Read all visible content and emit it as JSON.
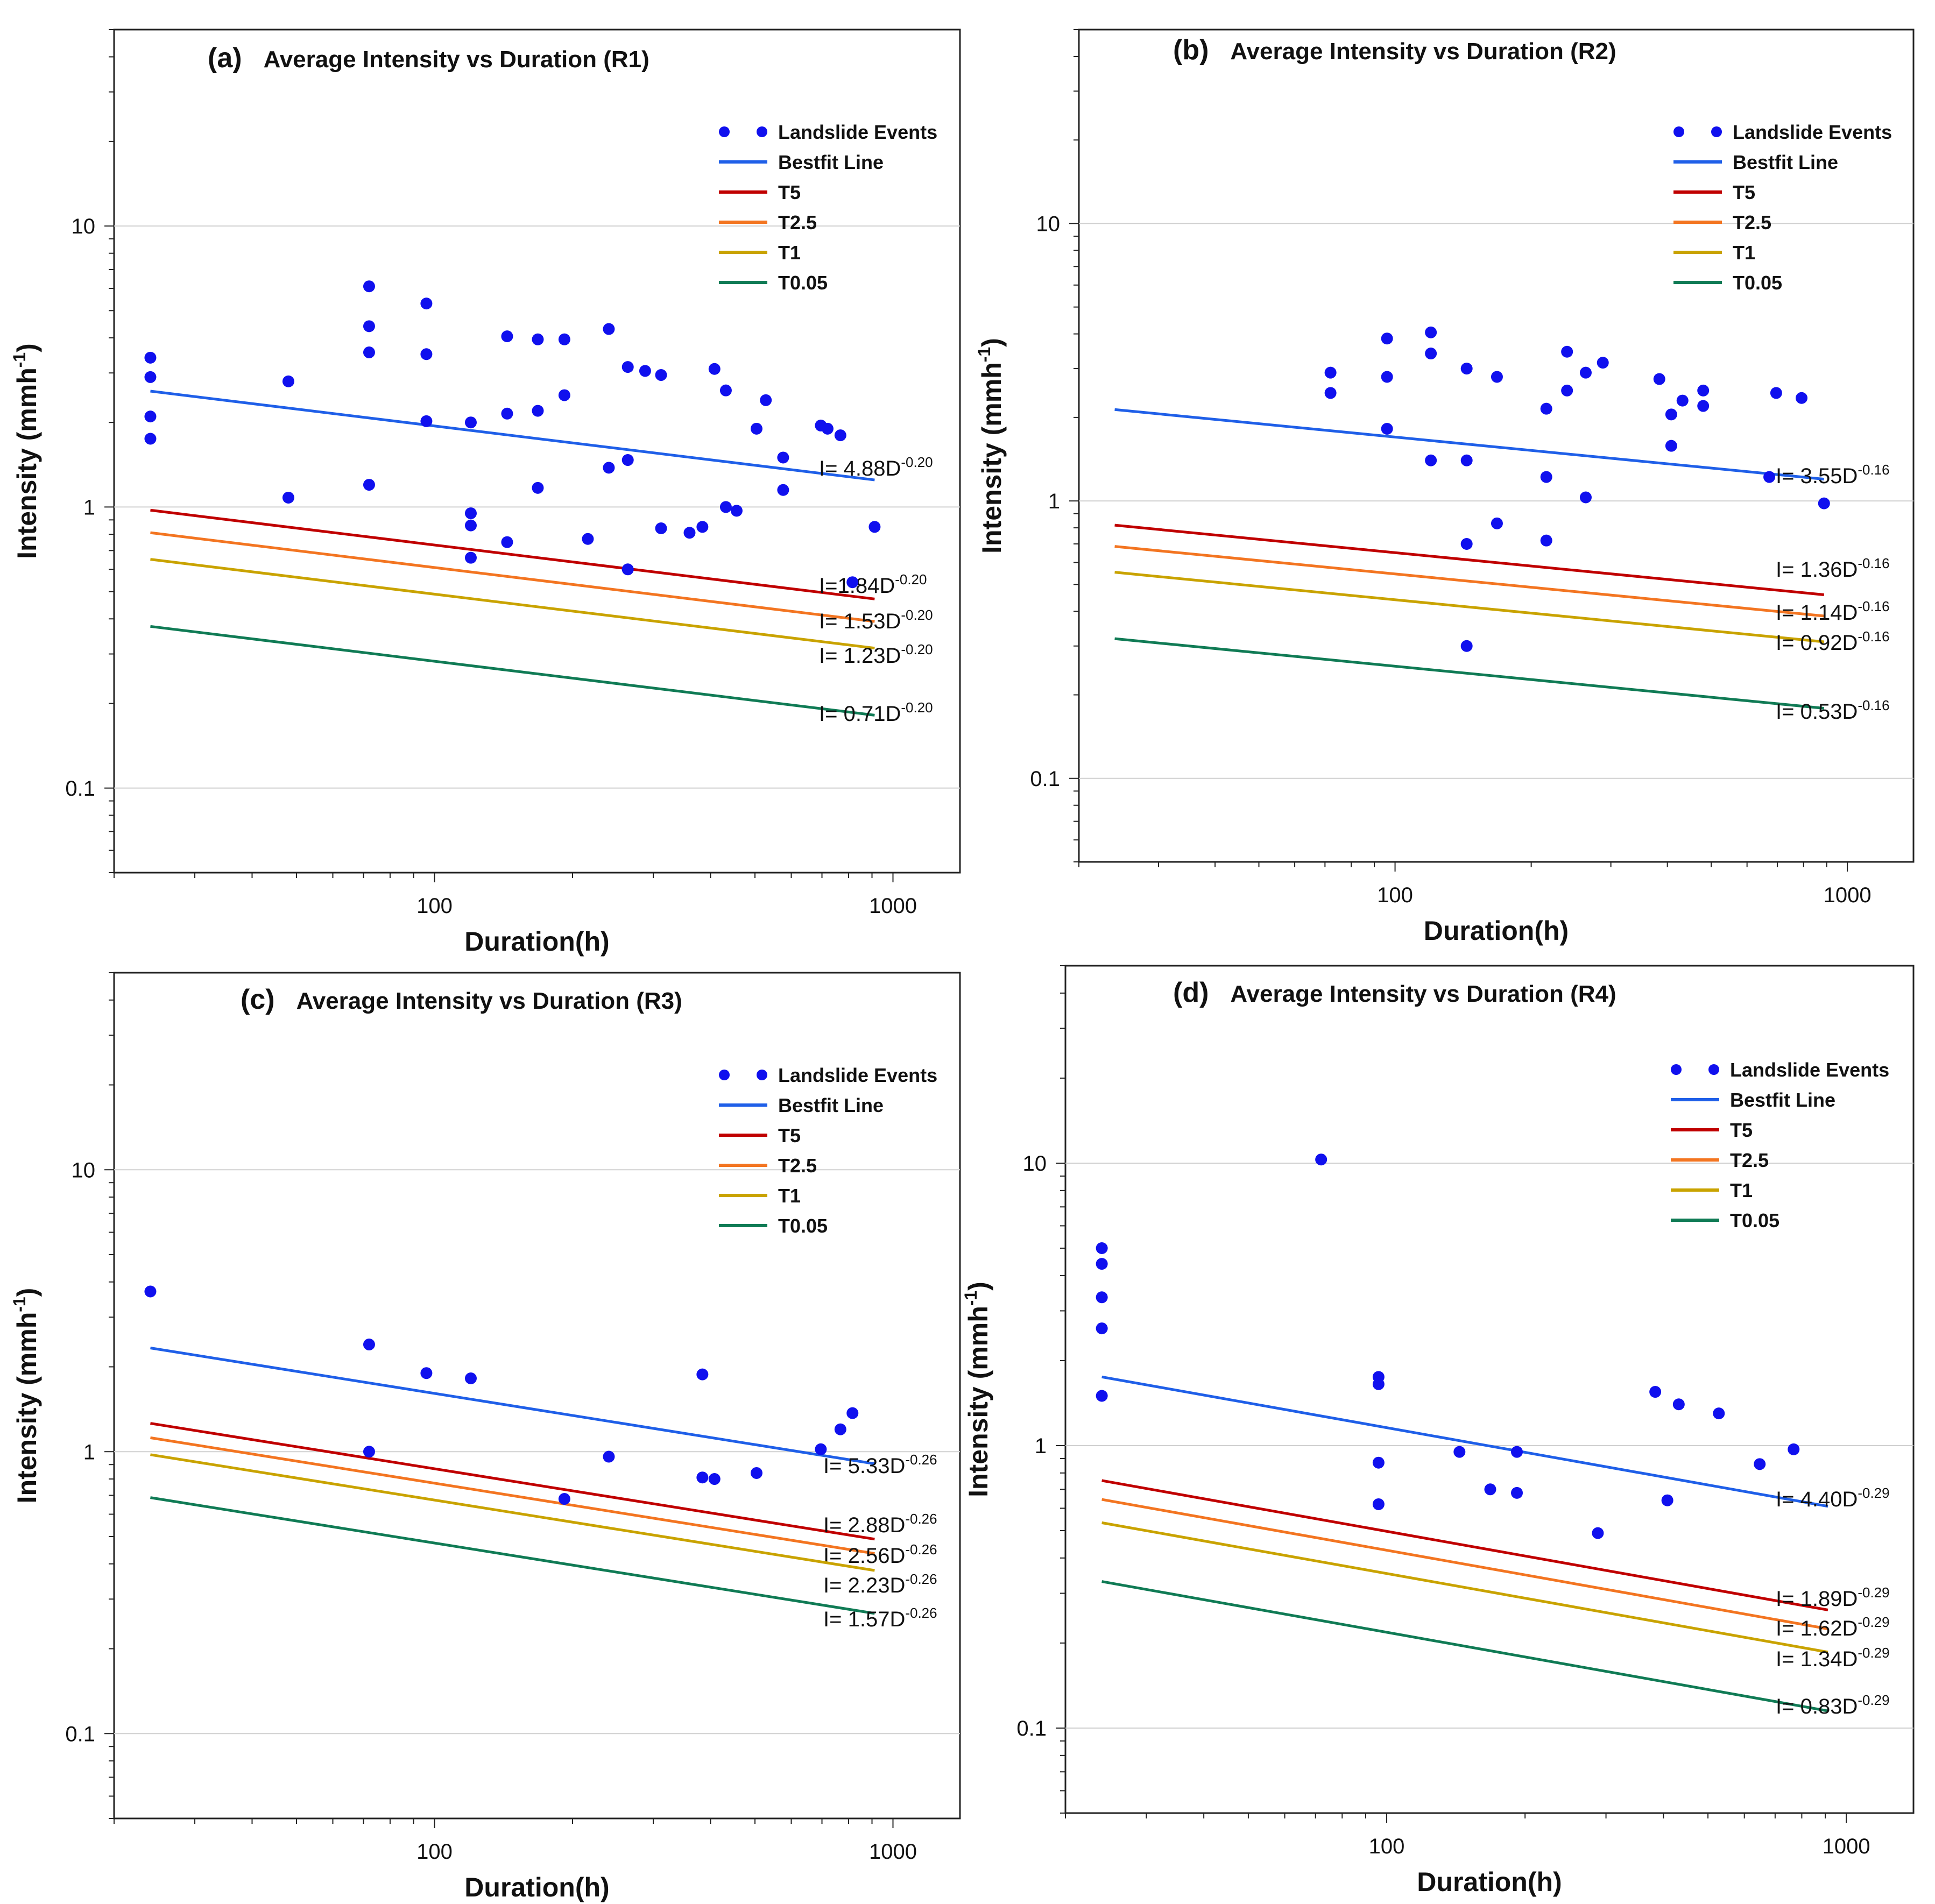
{
  "figure": {
    "x_axis_label": "Duration(h)",
    "y_axis_label": "Intensity (mmh-1)",
    "legend": [
      {
        "name": "Landslide Events",
        "color": "#1010ee",
        "kind": "markers"
      },
      {
        "name": "Bestfit Line",
        "color": "#1f5fe8",
        "kind": "line"
      },
      {
        "name": "T5",
        "color": "#c00000",
        "kind": "line"
      },
      {
        "name": "T2.5",
        "color": "#f37521",
        "kind": "line"
      },
      {
        "name": "T1",
        "color": "#c9a300",
        "kind": "line"
      },
      {
        "name": "T0.05",
        "color": "#107b55",
        "kind": "line"
      }
    ]
  },
  "chart_data": [
    {
      "type": "scatter",
      "panel": "(a)",
      "title": "Average Intensity vs Duration (R1)",
      "xlabel": "Duration(h)",
      "ylabel": "Intensity (mmh-1)",
      "xscale": "log",
      "yscale": "log",
      "xlim": [
        20,
        1400
      ],
      "ylim": [
        0.05,
        50
      ],
      "xticks": [
        {
          "value": 100,
          "label": "100"
        },
        {
          "value": 1000,
          "label": "1000"
        }
      ],
      "yticks": [
        {
          "value": 0.1,
          "label": "0.1"
        },
        {
          "value": 1,
          "label": "1"
        },
        {
          "value": 10,
          "label": "10"
        }
      ],
      "points": [
        [
          24,
          3.4
        ],
        [
          24,
          2.9
        ],
        [
          24,
          2.1
        ],
        [
          24,
          1.75
        ],
        [
          48,
          2.8
        ],
        [
          48,
          1.08
        ],
        [
          72,
          6.1
        ],
        [
          72,
          4.4
        ],
        [
          72,
          3.55
        ],
        [
          72,
          1.2
        ],
        [
          96,
          5.3
        ],
        [
          96,
          3.5
        ],
        [
          96,
          2.02
        ],
        [
          120,
          2.0
        ],
        [
          120,
          0.95
        ],
        [
          120,
          0.86
        ],
        [
          120,
          0.66
        ],
        [
          144,
          4.05
        ],
        [
          144,
          2.15
        ],
        [
          144,
          0.75
        ],
        [
          168,
          3.95
        ],
        [
          168,
          2.2
        ],
        [
          168,
          1.17
        ],
        [
          192,
          3.95
        ],
        [
          192,
          2.5
        ],
        [
          216,
          0.77
        ],
        [
          240,
          4.3
        ],
        [
          240,
          1.38
        ],
        [
          264,
          3.15
        ],
        [
          264,
          1.47
        ],
        [
          264,
          0.6
        ],
        [
          288,
          3.05
        ],
        [
          312,
          2.95
        ],
        [
          312,
          0.84
        ],
        [
          360,
          0.81
        ],
        [
          384,
          0.85
        ],
        [
          408,
          3.1
        ],
        [
          432,
          2.6
        ],
        [
          432,
          1.0
        ],
        [
          456,
          0.97
        ],
        [
          504,
          1.9
        ],
        [
          528,
          2.4
        ],
        [
          576,
          1.5
        ],
        [
          576,
          1.15
        ],
        [
          696,
          1.95
        ],
        [
          720,
          1.9
        ],
        [
          768,
          1.8
        ],
        [
          816,
          0.54
        ],
        [
          912,
          0.85
        ]
      ],
      "lines": [
        {
          "name": "Bestfit Line",
          "a": 4.88,
          "b": -0.2,
          "equation": "I= 4.88D",
          "exponent": "-0.20"
        },
        {
          "name": "T5",
          "a": 1.84,
          "b": -0.2,
          "equation": "I=1.84D",
          "exponent": "-0.20"
        },
        {
          "name": "T2.5",
          "a": 1.53,
          "b": -0.2,
          "equation": "I= 1.53D",
          "exponent": "-0.20"
        },
        {
          "name": "T1",
          "a": 1.23,
          "b": -0.2,
          "equation": "I= 1.23D",
          "exponent": "-0.20"
        },
        {
          "name": "T0.05",
          "a": 0.71,
          "b": -0.2,
          "equation": "I= 0.71D",
          "exponent": "-0.20"
        }
      ],
      "line_x_range": [
        24,
        912
      ]
    },
    {
      "type": "scatter",
      "panel": "(b)",
      "title": "Average Intensity vs Duration (R2)",
      "xlabel": "Duration(h)",
      "ylabel": "Intensity (mmh-1)",
      "xscale": "log",
      "yscale": "log",
      "xlim": [
        20,
        1400
      ],
      "ylim": [
        0.05,
        50
      ],
      "xticks": [
        {
          "value": 100,
          "label": "100"
        },
        {
          "value": 1000,
          "label": "1000"
        }
      ],
      "yticks": [
        {
          "value": 0.1,
          "label": "0.1"
        },
        {
          "value": 1,
          "label": "1"
        },
        {
          "value": 10,
          "label": "10"
        }
      ],
      "points": [
        [
          72,
          2.9
        ],
        [
          72,
          2.45
        ],
        [
          96,
          3.85
        ],
        [
          96,
          2.8
        ],
        [
          96,
          1.82
        ],
        [
          120,
          4.05
        ],
        [
          120,
          3.4
        ],
        [
          120,
          1.4
        ],
        [
          144,
          3.0
        ],
        [
          144,
          1.4
        ],
        [
          144,
          0.7
        ],
        [
          144,
          0.3
        ],
        [
          168,
          2.8
        ],
        [
          168,
          0.83
        ],
        [
          216,
          2.15
        ],
        [
          216,
          1.22
        ],
        [
          216,
          0.72
        ],
        [
          240,
          3.45
        ],
        [
          240,
          2.5
        ],
        [
          264,
          2.9
        ],
        [
          264,
          1.03
        ],
        [
          288,
          3.15
        ],
        [
          384,
          2.75
        ],
        [
          408,
          2.05
        ],
        [
          408,
          1.58
        ],
        [
          432,
          2.3
        ],
        [
          480,
          2.5
        ],
        [
          480,
          2.2
        ],
        [
          672,
          1.22
        ],
        [
          696,
          2.45
        ],
        [
          792,
          2.35
        ],
        [
          888,
          0.98
        ]
      ],
      "lines": [
        {
          "name": "Bestfit Line",
          "a": 3.55,
          "b": -0.16,
          "equation": "I= 3.55D",
          "exponent": "-0.16"
        },
        {
          "name": "T5",
          "a": 1.36,
          "b": -0.16,
          "equation": "I= 1.36D",
          "exponent": "-0.16"
        },
        {
          "name": "T2.5",
          "a": 1.14,
          "b": -0.16,
          "equation": "I= 1.14D",
          "exponent": "-0.16"
        },
        {
          "name": "T1",
          "a": 0.92,
          "b": -0.16,
          "equation": "I= 0.92D",
          "exponent": "-0.16"
        },
        {
          "name": "T0.05",
          "a": 0.53,
          "b": -0.16,
          "equation": "I= 0.53D",
          "exponent": "-0.16"
        }
      ],
      "line_x_range": [
        24,
        888
      ]
    },
    {
      "type": "scatter",
      "panel": "(c)",
      "title": "Average Intensity vs Duration (R3)",
      "xlabel": "Duration(h)",
      "ylabel": "Intensity (mmh-1)",
      "xscale": "log",
      "yscale": "log",
      "xlim": [
        20,
        1400
      ],
      "ylim": [
        0.05,
        50
      ],
      "xticks": [
        {
          "value": 100,
          "label": "100"
        },
        {
          "value": 1000,
          "label": "1000"
        }
      ],
      "yticks": [
        {
          "value": 0.1,
          "label": "0.1"
        },
        {
          "value": 1,
          "label": "1"
        },
        {
          "value": 10,
          "label": "10"
        }
      ],
      "points": [
        [
          24,
          3.7
        ],
        [
          72,
          2.4
        ],
        [
          72,
          1.0
        ],
        [
          96,
          1.9
        ],
        [
          120,
          1.82
        ],
        [
          192,
          0.68
        ],
        [
          240,
          0.96
        ],
        [
          384,
          1.88
        ],
        [
          384,
          0.81
        ],
        [
          408,
          0.8
        ],
        [
          504,
          0.84
        ],
        [
          696,
          1.02
        ],
        [
          768,
          1.2
        ],
        [
          816,
          1.37
        ]
      ],
      "lines": [
        {
          "name": "Bestfit Line",
          "a": 5.33,
          "b": -0.26,
          "equation": "I= 5.33D",
          "exponent": "-0.26"
        },
        {
          "name": "T5",
          "a": 2.88,
          "b": -0.26,
          "equation": "I= 2.88D",
          "exponent": "-0.26"
        },
        {
          "name": "T2.5",
          "a": 2.56,
          "b": -0.26,
          "equation": "I= 2.56D",
          "exponent": "-0.26"
        },
        {
          "name": "T1",
          "a": 2.23,
          "b": -0.26,
          "equation": "I= 2.23D",
          "exponent": "-0.26"
        },
        {
          "name": "T0.05",
          "a": 1.57,
          "b": -0.26,
          "equation": "I= 1.57D",
          "exponent": "-0.26"
        }
      ],
      "line_x_range": [
        24,
        912
      ]
    },
    {
      "type": "scatter",
      "panel": "(d)",
      "title": "Average Intensity vs Duration (R4)",
      "xlabel": "Duration(h)",
      "ylabel": "Intensity (mmh-1)",
      "xscale": "log",
      "yscale": "log",
      "xlim": [
        20,
        1400
      ],
      "ylim": [
        0.05,
        50
      ],
      "xticks": [
        {
          "value": 100,
          "label": "100"
        },
        {
          "value": 1000,
          "label": "1000"
        }
      ],
      "yticks": [
        {
          "value": 0.1,
          "label": "0.1"
        },
        {
          "value": 1,
          "label": "1"
        },
        {
          "value": 10,
          "label": "10"
        }
      ],
      "points": [
        [
          24,
          5.0
        ],
        [
          24,
          4.4
        ],
        [
          24,
          3.35
        ],
        [
          24,
          2.6
        ],
        [
          24,
          1.5
        ],
        [
          72,
          10.3
        ],
        [
          96,
          1.75
        ],
        [
          96,
          1.65
        ],
        [
          96,
          0.87
        ],
        [
          96,
          0.62
        ],
        [
          144,
          0.95
        ],
        [
          168,
          0.7
        ],
        [
          192,
          0.95
        ],
        [
          192,
          0.68
        ],
        [
          288,
          0.49
        ],
        [
          384,
          1.55
        ],
        [
          408,
          0.64
        ],
        [
          432,
          1.4
        ],
        [
          528,
          1.3
        ],
        [
          648,
          0.86
        ],
        [
          768,
          0.97
        ]
      ],
      "lines": [
        {
          "name": "Bestfit Line",
          "a": 4.4,
          "b": -0.29,
          "equation": "I= 4.40D",
          "exponent": "-0.29"
        },
        {
          "name": "T5",
          "a": 1.89,
          "b": -0.29,
          "equation": "I= 1.89D",
          "exponent": "-0.29"
        },
        {
          "name": "T2.5",
          "a": 1.62,
          "b": -0.29,
          "equation": "I= 1.62D",
          "exponent": "-0.29"
        },
        {
          "name": "T1",
          "a": 1.34,
          "b": -0.29,
          "equation": "I= 1.34D",
          "exponent": "-0.29"
        },
        {
          "name": "T0.05",
          "a": 0.83,
          "b": -0.29,
          "equation": "I= 0.83D",
          "exponent": "-0.29"
        }
      ],
      "line_x_range": [
        24,
        912
      ]
    }
  ]
}
